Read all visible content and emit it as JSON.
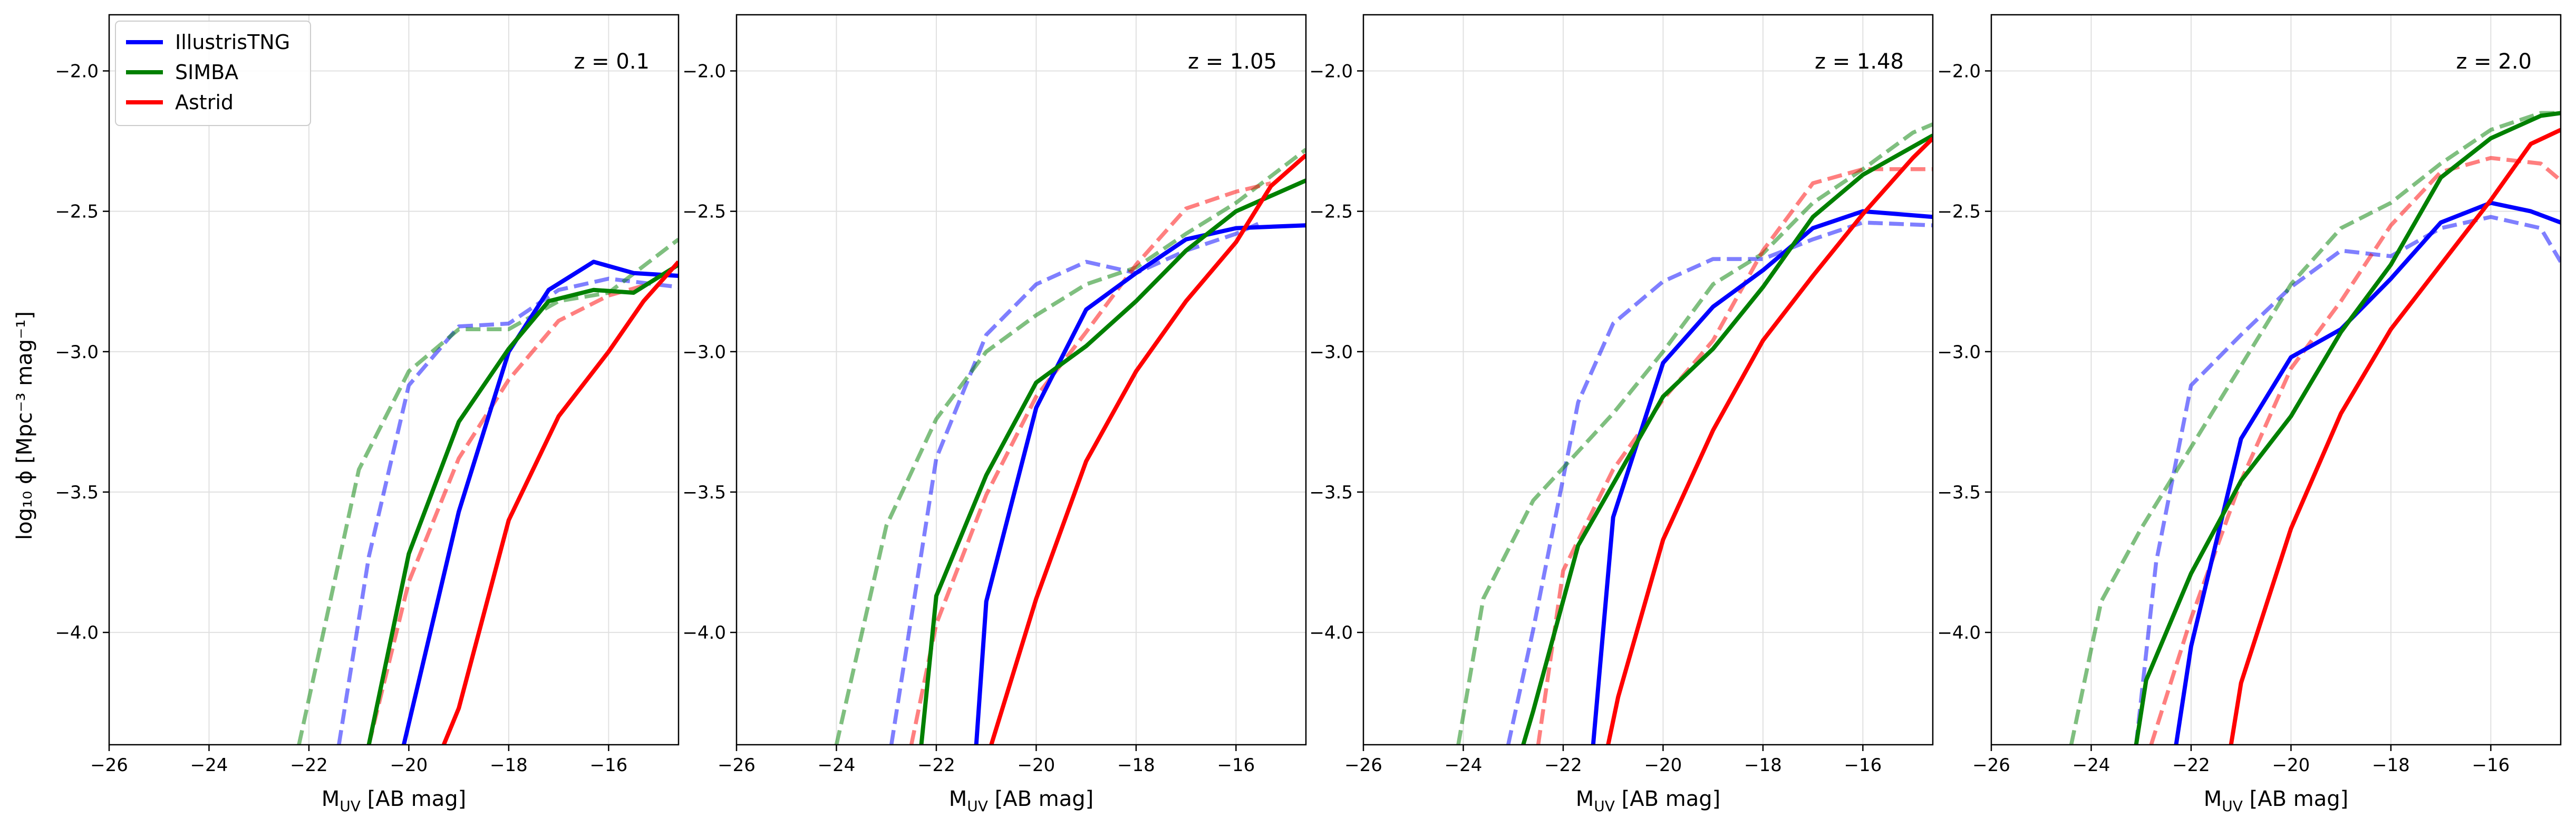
{
  "figure": {
    "ylabel": "log₁₀ ϕ [Mpc⁻³ mag⁻¹]",
    "legend": {
      "position": "upper-left",
      "entries": [
        "IllustrisTNG",
        "SIMBA",
        "Astrid"
      ]
    }
  },
  "chart_data": [
    {
      "type": "line",
      "panel_label": "z = 0.1",
      "xlabel": "M_UV [AB mag]",
      "ylabel": "log₁₀ ϕ [Mpc⁻³ mag⁻¹]",
      "xlim": [
        -26,
        -14.6
      ],
      "ylim": [
        -4.4,
        -1.8
      ],
      "xticks": [
        -26,
        -24,
        -22,
        -20,
        -18,
        -16
      ],
      "yticks": [
        -4.0,
        -3.5,
        -3.0,
        -2.5,
        -2.0
      ],
      "xtick_labels": [
        "−26",
        "−24",
        "−22",
        "−20",
        "−18",
        "−16"
      ],
      "ytick_labels": [
        "−4.0",
        "−3.5",
        "−3.0",
        "−2.5",
        "−2.0"
      ],
      "grid": true,
      "series": [
        {
          "name": "IllustrisTNG",
          "color": "#0000ff",
          "style": "solid",
          "x": [
            -20.1,
            -19.0,
            -18.0,
            -17.2,
            -16.3,
            -15.5,
            -14.6
          ],
          "y": [
            -4.4,
            -3.57,
            -3.0,
            -2.78,
            -2.68,
            -2.72,
            -2.73
          ]
        },
        {
          "name": "SIMBA",
          "color": "#008000",
          "style": "solid",
          "x": [
            -20.8,
            -20.0,
            -19.0,
            -18.0,
            -17.2,
            -16.3,
            -15.5,
            -14.6
          ],
          "y": [
            -4.4,
            -3.72,
            -3.25,
            -2.99,
            -2.82,
            -2.78,
            -2.79,
            -2.69
          ]
        },
        {
          "name": "Astrid",
          "color": "#ff0000",
          "style": "solid",
          "x": [
            -19.3,
            -19.0,
            -18.0,
            -17.0,
            -16.0,
            -15.3,
            -14.6
          ],
          "y": [
            -4.4,
            -4.27,
            -3.6,
            -3.23,
            -3.0,
            -2.82,
            -2.68
          ]
        },
        {
          "name": "IllustrisTNG",
          "color": "#0000ff",
          "style": "dashed",
          "x": [
            -21.4,
            -20.8,
            -20.0,
            -19.0,
            -18.0,
            -17.0,
            -16.0,
            -14.6
          ],
          "y": [
            -4.4,
            -3.73,
            -3.12,
            -2.91,
            -2.9,
            -2.78,
            -2.74,
            -2.77
          ]
        },
        {
          "name": "SIMBA",
          "color": "#008000",
          "style": "dashed",
          "x": [
            -22.2,
            -21.0,
            -20.0,
            -19.0,
            -18.0,
            -17.0,
            -16.0,
            -14.6
          ],
          "y": [
            -4.4,
            -3.42,
            -3.07,
            -2.92,
            -2.92,
            -2.82,
            -2.79,
            -2.6
          ]
        },
        {
          "name": "Astrid",
          "color": "#ff0000",
          "style": "dashed",
          "x": [
            -20.8,
            -20.0,
            -19.0,
            -18.0,
            -17.0,
            -16.0,
            -15.2
          ],
          "y": [
            -4.4,
            -3.82,
            -3.38,
            -3.1,
            -2.89,
            -2.8,
            -2.76
          ]
        }
      ]
    },
    {
      "type": "line",
      "panel_label": "z = 1.05",
      "xlabel": "M_UV [AB mag]",
      "xlim": [
        -26,
        -14.6
      ],
      "ylim": [
        -4.4,
        -1.8
      ],
      "xticks": [
        -26,
        -24,
        -22,
        -20,
        -18,
        -16
      ],
      "yticks": [
        -4.0,
        -3.5,
        -3.0,
        -2.5,
        -2.0
      ],
      "xtick_labels": [
        "−26",
        "−24",
        "−22",
        "−20",
        "−18",
        "−16"
      ],
      "ytick_labels": [
        "−4.0",
        "−3.5",
        "−3.0",
        "−2.5",
        "−2.0"
      ],
      "grid": true,
      "series": [
        {
          "name": "IllustrisTNG",
          "color": "#0000ff",
          "style": "solid",
          "x": [
            -21.2,
            -21.0,
            -20.0,
            -19.0,
            -18.0,
            -17.0,
            -16.0,
            -14.6
          ],
          "y": [
            -4.4,
            -3.89,
            -3.2,
            -2.85,
            -2.72,
            -2.6,
            -2.56,
            -2.55
          ]
        },
        {
          "name": "SIMBA",
          "color": "#008000",
          "style": "solid",
          "x": [
            -22.3,
            -22.0,
            -21.0,
            -20.0,
            -19.0,
            -18.0,
            -17.0,
            -16.0,
            -14.6
          ],
          "y": [
            -4.4,
            -3.87,
            -3.44,
            -3.11,
            -2.98,
            -2.82,
            -2.64,
            -2.5,
            -2.39
          ]
        },
        {
          "name": "Astrid",
          "color": "#ff0000",
          "style": "solid",
          "x": [
            -20.9,
            -20.0,
            -19.0,
            -18.0,
            -17.0,
            -16.0,
            -15.3,
            -14.6
          ],
          "y": [
            -4.4,
            -3.88,
            -3.39,
            -3.07,
            -2.82,
            -2.61,
            -2.41,
            -2.3
          ]
        },
        {
          "name": "IllustrisTNG",
          "color": "#0000ff",
          "style": "dashed",
          "x": [
            -22.9,
            -22.0,
            -21.0,
            -20.0,
            -19.0,
            -18.0,
            -17.0,
            -16.0,
            -15.5
          ],
          "y": [
            -4.4,
            -3.38,
            -2.94,
            -2.76,
            -2.68,
            -2.72,
            -2.64,
            -2.58,
            -2.54
          ]
        },
        {
          "name": "SIMBA",
          "color": "#008000",
          "style": "dashed",
          "x": [
            -24.0,
            -23.0,
            -22.0,
            -21.0,
            -20.0,
            -19.0,
            -18.0,
            -17.0,
            -16.0,
            -14.6
          ],
          "y": [
            -4.4,
            -3.62,
            -3.24,
            -3.0,
            -2.87,
            -2.76,
            -2.7,
            -2.58,
            -2.47,
            -2.28
          ]
        },
        {
          "name": "Astrid",
          "color": "#ff0000",
          "style": "dashed",
          "x": [
            -22.5,
            -22.0,
            -21.0,
            -20.0,
            -19.0,
            -18.0,
            -17.0,
            -16.0,
            -15.3
          ],
          "y": [
            -4.4,
            -3.97,
            -3.51,
            -3.16,
            -2.93,
            -2.69,
            -2.49,
            -2.43,
            -2.4
          ]
        }
      ]
    },
    {
      "type": "line",
      "panel_label": "z = 1.48",
      "xlabel": "M_UV [AB mag]",
      "xlim": [
        -26,
        -14.6
      ],
      "ylim": [
        -4.4,
        -1.8
      ],
      "xticks": [
        -26,
        -24,
        -22,
        -20,
        -18,
        -16
      ],
      "yticks": [
        -4.0,
        -3.5,
        -3.0,
        -2.5,
        -2.0
      ],
      "xtick_labels": [
        "−26",
        "−24",
        "−22",
        "−20",
        "−18",
        "−16"
      ],
      "ytick_labels": [
        "−4.0",
        "−3.5",
        "−3.0",
        "−2.5",
        "−2.0"
      ],
      "grid": true,
      "series": [
        {
          "name": "IllustrisTNG",
          "color": "#0000ff",
          "style": "solid",
          "x": [
            -21.4,
            -21.0,
            -20.0,
            -19.0,
            -18.0,
            -17.0,
            -16.0,
            -14.6
          ],
          "y": [
            -4.4,
            -3.59,
            -3.04,
            -2.84,
            -2.71,
            -2.56,
            -2.5,
            -2.52
          ]
        },
        {
          "name": "SIMBA",
          "color": "#008000",
          "style": "solid",
          "x": [
            -22.8,
            -22.6,
            -21.7,
            -20.0,
            -19.0,
            -18.0,
            -17.0,
            -16.0,
            -14.6
          ],
          "y": [
            -4.4,
            -4.28,
            -3.69,
            -3.16,
            -2.99,
            -2.77,
            -2.52,
            -2.37,
            -2.23
          ]
        },
        {
          "name": "Astrid",
          "color": "#ff0000",
          "style": "solid",
          "x": [
            -21.1,
            -20.9,
            -20.0,
            -19.0,
            -18.0,
            -17.0,
            -16.0,
            -15.0,
            -14.6
          ],
          "y": [
            -4.4,
            -4.23,
            -3.67,
            -3.28,
            -2.96,
            -2.73,
            -2.51,
            -2.31,
            -2.24
          ]
        },
        {
          "name": "IllustrisTNG",
          "color": "#0000ff",
          "style": "dashed",
          "x": [
            -23.1,
            -22.6,
            -21.7,
            -21.0,
            -20.0,
            -19.0,
            -18.0,
            -17.0,
            -16.0,
            -14.6
          ],
          "y": [
            -4.4,
            -3.99,
            -3.18,
            -2.9,
            -2.75,
            -2.67,
            -2.67,
            -2.6,
            -2.54,
            -2.55
          ]
        },
        {
          "name": "SIMBA",
          "color": "#008000",
          "style": "dashed",
          "x": [
            -24.1,
            -23.6,
            -22.6,
            -21.0,
            -20.0,
            -19.0,
            -18.0,
            -17.0,
            -16.0,
            -15.0,
            -14.6
          ],
          "y": [
            -4.4,
            -3.88,
            -3.53,
            -3.22,
            -3.0,
            -2.76,
            -2.65,
            -2.47,
            -2.35,
            -2.22,
            -2.19
          ]
        },
        {
          "name": "Astrid",
          "color": "#ff0000",
          "style": "dashed",
          "x": [
            -22.5,
            -22.0,
            -21.0,
            -20.0,
            -19.0,
            -18.0,
            -17.0,
            -16.0,
            -14.6
          ],
          "y": [
            -4.4,
            -3.78,
            -3.42,
            -3.17,
            -2.96,
            -2.64,
            -2.4,
            -2.35,
            -2.35
          ]
        }
      ]
    },
    {
      "type": "line",
      "panel_label": "z = 2.0",
      "xlabel": "M_UV [AB mag]",
      "xlim": [
        -26,
        -14.6
      ],
      "ylim": [
        -4.4,
        -1.8
      ],
      "xticks": [
        -26,
        -24,
        -22,
        -20,
        -18,
        -16
      ],
      "yticks": [
        -4.0,
        -3.5,
        -3.0,
        -2.5,
        -2.0
      ],
      "xtick_labels": [
        "−26",
        "−24",
        "−22",
        "−20",
        "−18",
        "−16"
      ],
      "ytick_labels": [
        "−4.0",
        "−3.5",
        "−3.0",
        "−2.5",
        "−2.0"
      ],
      "grid": true,
      "series": [
        {
          "name": "IllustrisTNG",
          "color": "#0000ff",
          "style": "solid",
          "x": [
            -22.3,
            -22.0,
            -21.0,
            -20.0,
            -19.0,
            -18.0,
            -17.0,
            -16.0,
            -15.2,
            -14.6
          ],
          "y": [
            -4.4,
            -4.05,
            -3.31,
            -3.02,
            -2.92,
            -2.74,
            -2.54,
            -2.47,
            -2.5,
            -2.54
          ]
        },
        {
          "name": "SIMBA",
          "color": "#008000",
          "style": "solid",
          "x": [
            -23.1,
            -22.9,
            -22.0,
            -21.0,
            -20.0,
            -19.0,
            -18.0,
            -17.0,
            -16.0,
            -15.0,
            -14.6
          ],
          "y": [
            -4.4,
            -4.17,
            -3.79,
            -3.46,
            -3.23,
            -2.93,
            -2.69,
            -2.38,
            -2.24,
            -2.16,
            -2.15
          ]
        },
        {
          "name": "Astrid",
          "color": "#ff0000",
          "style": "solid",
          "x": [
            -21.2,
            -21.0,
            -20.0,
            -19.0,
            -18.0,
            -17.0,
            -16.0,
            -15.2,
            -14.6
          ],
          "y": [
            -4.4,
            -4.18,
            -3.63,
            -3.22,
            -2.92,
            -2.69,
            -2.46,
            -2.26,
            -2.21
          ]
        },
        {
          "name": "IllustrisTNG",
          "color": "#0000ff",
          "style": "dashed",
          "x": [
            -23.1,
            -22.7,
            -22.0,
            -21.0,
            -20.0,
            -19.0,
            -18.0,
            -17.0,
            -16.0,
            -15.0,
            -14.6
          ],
          "y": [
            -4.4,
            -3.75,
            -3.12,
            -2.94,
            -2.77,
            -2.64,
            -2.66,
            -2.56,
            -2.52,
            -2.56,
            -2.68
          ]
        },
        {
          "name": "SIMBA",
          "color": "#008000",
          "style": "dashed",
          "x": [
            -24.4,
            -23.8,
            -23.0,
            -22.0,
            -21.0,
            -20.0,
            -19.0,
            -18.0,
            -17.0,
            -16.0,
            -15.0,
            -14.6
          ],
          "y": [
            -4.4,
            -3.89,
            -3.63,
            -3.34,
            -3.05,
            -2.76,
            -2.56,
            -2.47,
            -2.33,
            -2.21,
            -2.15,
            -2.15
          ]
        },
        {
          "name": "Astrid",
          "color": "#ff0000",
          "style": "dashed",
          "x": [
            -22.8,
            -22.0,
            -21.0,
            -20.0,
            -19.0,
            -18.0,
            -17.0,
            -16.0,
            -15.0,
            -14.6
          ],
          "y": [
            -4.4,
            -3.95,
            -3.46,
            -3.06,
            -2.82,
            -2.55,
            -2.36,
            -2.31,
            -2.33,
            -2.39
          ]
        }
      ]
    }
  ]
}
